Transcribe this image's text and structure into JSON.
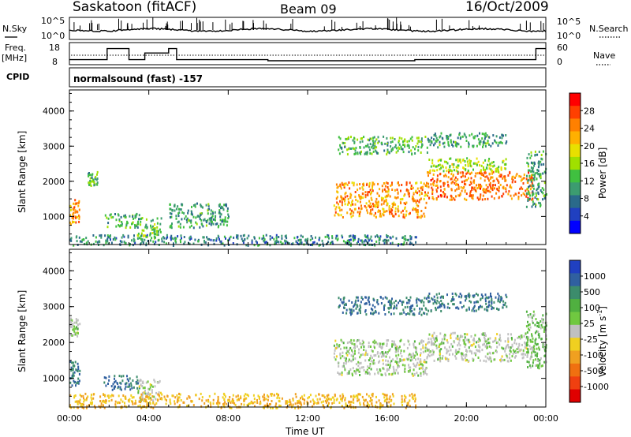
{
  "header": {
    "station": "Saskatoon (fitACF)",
    "beam": "Beam 09",
    "date": "16/Oct/2009"
  },
  "noise_panel": {
    "left_label": "N.Sky",
    "right_label": "N.Search",
    "left_ticks": [
      "10^5",
      "10^0"
    ],
    "right_ticks": [
      "10^5",
      "10^0"
    ],
    "left_line_color": "#000000"
  },
  "freq_panel": {
    "left_label": "Freq.",
    "left_unit": "[MHz]",
    "left_ticks": [
      "18",
      "8"
    ],
    "right_label": "Nave",
    "right_ticks": [
      "60",
      "0"
    ]
  },
  "cpid": {
    "label": "CPID",
    "text": "normalsound (fast) -157"
  },
  "power_panel": {
    "ylabel": "Slant Range [km]",
    "yticks": [
      "4000",
      "3000",
      "2000",
      "1000"
    ],
    "colorbar_title": "Power [dB]",
    "colorbar_labels": [
      "28",
      "24",
      "20",
      "16",
      "12",
      "8",
      "4"
    ],
    "colorbar_colors": [
      "#ff0000",
      "#ff4000",
      "#ff8000",
      "#ffb000",
      "#e8e000",
      "#a0e000",
      "#40c040",
      "#3c9c70",
      "#2a6a8a",
      "#2040c0",
      "#0000ff"
    ]
  },
  "velocity_panel": {
    "ylabel": "Slant Range [km]",
    "yticks": [
      "4000",
      "3000",
      "2000",
      "1000"
    ],
    "colorbar_title": "Velocity [m s",
    "colorbar_title_sup": "-1",
    "colorbar_title_end": "]",
    "colorbar_labels": [
      "1000",
      "500",
      "100",
      "25",
      "-25",
      "-100",
      "-500",
      "-1000"
    ],
    "colorbar_colors": [
      "#2040c0",
      "#3060a0",
      "#3c8c6c",
      "#50b040",
      "#70c840",
      "#c0c0c0",
      "#f0d020",
      "#f0a020",
      "#f07010",
      "#f04010",
      "#e00000"
    ]
  },
  "x_axis": {
    "title": "Time UT",
    "ticks": [
      "00:00",
      "04:00",
      "08:00",
      "12:00",
      "16:00",
      "20:00",
      "00:00"
    ]
  },
  "chart_data": {
    "type": "heatmap",
    "x_range_hours": [
      0,
      24
    ],
    "y_range_km": [
      200,
      4600
    ],
    "panels": [
      "Power [dB]",
      "Velocity [m s-1]"
    ],
    "power_regions": [
      {
        "t0": 0.0,
        "t1": 0.5,
        "r0": 800,
        "r1": 1500,
        "value": 24
      },
      {
        "t0": 0.9,
        "t1": 1.4,
        "r0": 1900,
        "r1": 2300,
        "value": 12
      },
      {
        "t0": 1.7,
        "t1": 3.5,
        "r0": 700,
        "r1": 1100,
        "value": 12
      },
      {
        "t0": 3.4,
        "t1": 4.6,
        "r0": 400,
        "r1": 1000,
        "value": 14
      },
      {
        "t0": 5.0,
        "t1": 8.0,
        "r0": 700,
        "r1": 1400,
        "value": 10
      },
      {
        "t0": 0.0,
        "t1": 17.5,
        "r0": 200,
        "r1": 500,
        "value": 8
      },
      {
        "t0": 13.3,
        "t1": 18.0,
        "r0": 1000,
        "r1": 2000,
        "value": 24
      },
      {
        "t0": 13.5,
        "t1": 18.0,
        "r0": 2800,
        "r1": 3300,
        "value": 12
      },
      {
        "t0": 18.0,
        "t1": 23.3,
        "r0": 1500,
        "r1": 2300,
        "value": 26
      },
      {
        "t0": 18.0,
        "t1": 22.0,
        "r0": 2300,
        "r1": 2700,
        "value": 16
      },
      {
        "t0": 18.0,
        "t1": 22.0,
        "r0": 3000,
        "r1": 3400,
        "value": 10
      },
      {
        "t0": 23.0,
        "t1": 24.0,
        "r0": 1300,
        "r1": 2900,
        "value": 10
      }
    ],
    "velocity_regions": [
      {
        "t0": 0.0,
        "t1": 0.5,
        "r0": 800,
        "r1": 1500,
        "value": 100
      },
      {
        "t0": 0.0,
        "t1": 0.5,
        "r0": 2200,
        "r1": 2700,
        "value": 0
      },
      {
        "t0": 1.7,
        "t1": 3.5,
        "r0": 700,
        "r1": 1100,
        "value": 100
      },
      {
        "t0": 3.4,
        "t1": 4.6,
        "r0": 400,
        "r1": 1000,
        "value": 0
      },
      {
        "t0": 0.0,
        "t1": 17.5,
        "r0": 200,
        "r1": 600,
        "value": -100
      },
      {
        "t0": 13.3,
        "t1": 18.0,
        "r0": 1100,
        "r1": 2100,
        "value": 0
      },
      {
        "t0": 13.5,
        "t1": 18.0,
        "r0": 2800,
        "r1": 3300,
        "value": 100
      },
      {
        "t0": 18.0,
        "t1": 23.3,
        "r0": 1500,
        "r1": 2300,
        "value": 0
      },
      {
        "t0": 18.0,
        "t1": 22.0,
        "r0": 2900,
        "r1": 3400,
        "value": 100
      },
      {
        "t0": 23.0,
        "t1": 24.0,
        "r0": 1300,
        "r1": 2900,
        "value": 25
      }
    ],
    "frequency_steps_mhz": [
      {
        "t0": 0.0,
        "t1": 1.9,
        "value": 11
      },
      {
        "t0": 1.9,
        "t1": 3.0,
        "value": 16
      },
      {
        "t0": 3.0,
        "t1": 3.8,
        "value": 11
      },
      {
        "t0": 3.8,
        "t1": 5.0,
        "value": 14
      },
      {
        "t0": 5.0,
        "t1": 5.4,
        "value": 16
      },
      {
        "t0": 5.4,
        "t1": 10.0,
        "value": 11
      },
      {
        "t0": 10.0,
        "t1": 17.4,
        "value": 10.5
      },
      {
        "t0": 17.4,
        "t1": 23.5,
        "value": 11
      },
      {
        "t0": 23.5,
        "t1": 24.0,
        "value": 16
      }
    ]
  }
}
